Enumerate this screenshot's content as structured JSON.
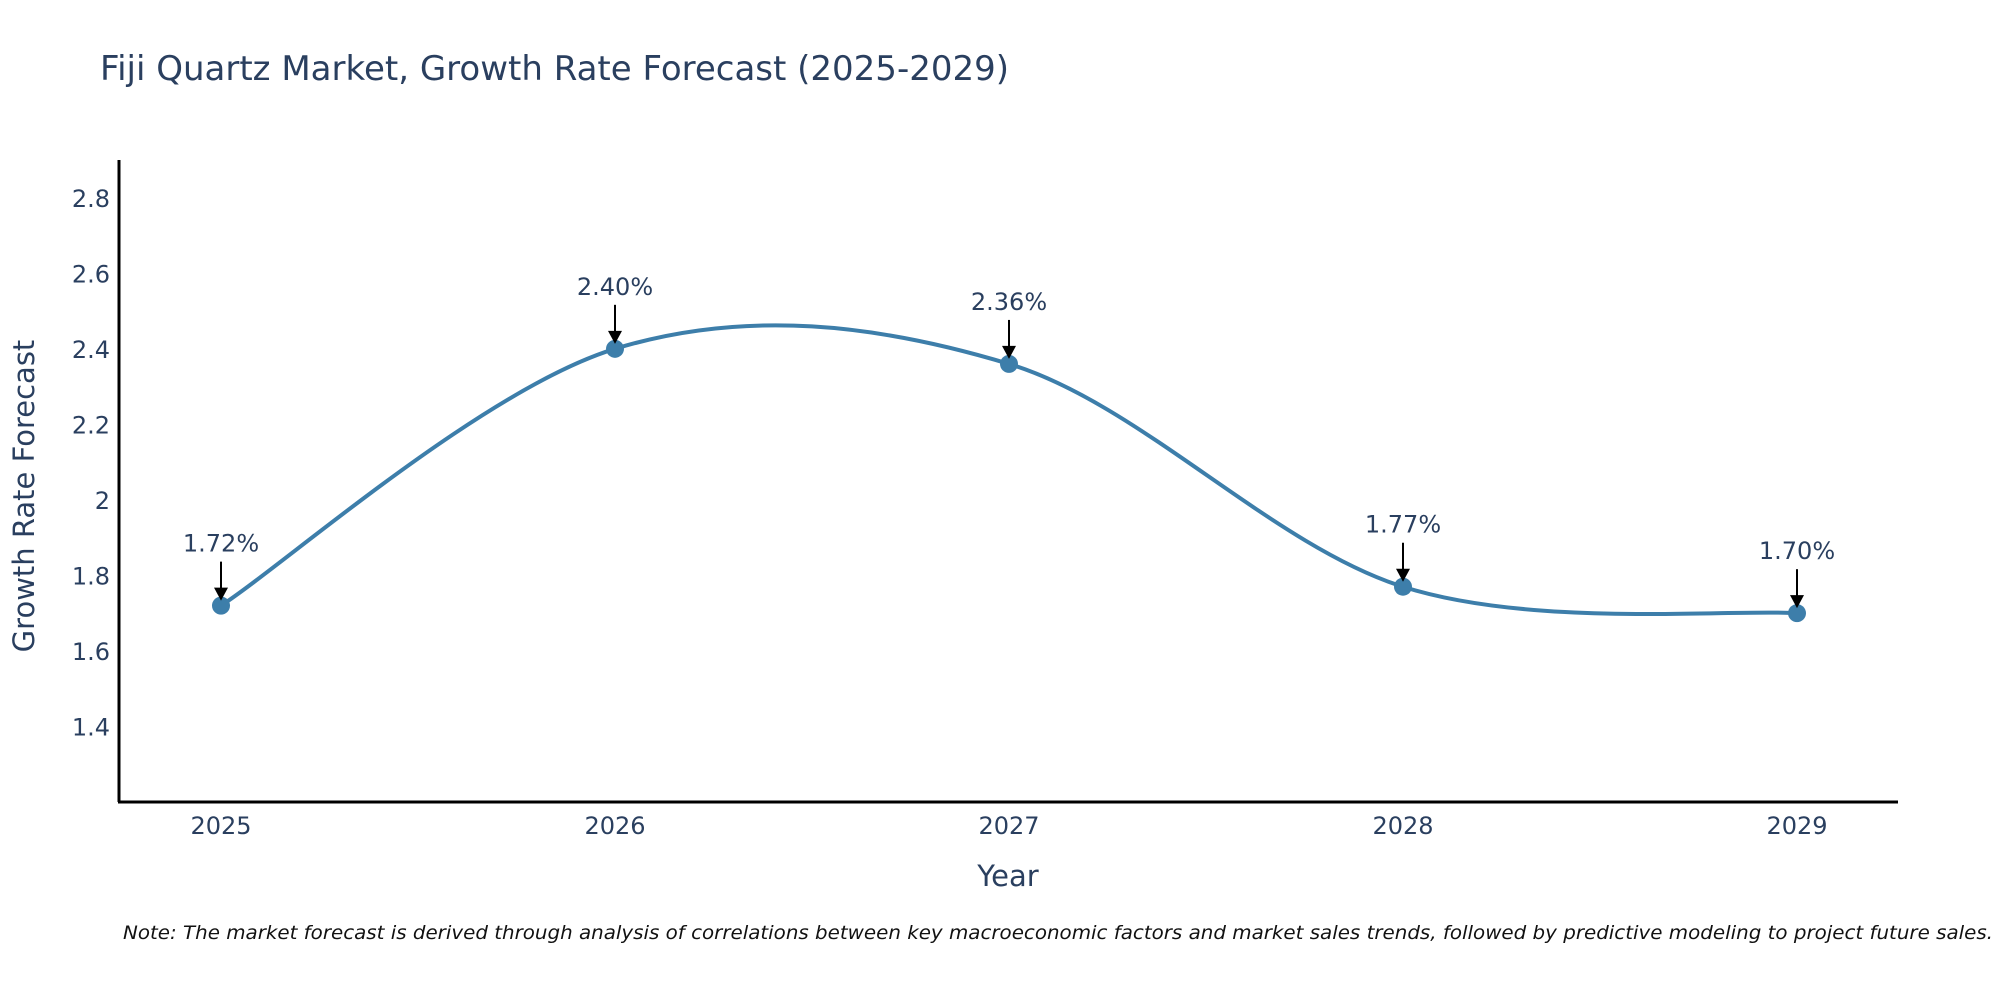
{
  "chart_data": {
    "type": "line",
    "title": "Fiji Quartz Market, Growth Rate Forecast (2025-2029)",
    "xlabel": "Year",
    "ylabel": "Growth Rate Forecast",
    "categories": [
      "2025",
      "2026",
      "2027",
      "2028",
      "2029"
    ],
    "series": [
      {
        "name": "Growth Rate Forecast",
        "values": [
          1.72,
          2.4,
          2.36,
          1.77,
          1.7
        ]
      }
    ],
    "data_labels": [
      "1.72%",
      "2.40%",
      "2.36%",
      "1.77%",
      "1.70%"
    ],
    "ylim": [
      1.2,
      2.9
    ],
    "yticks": [
      1.4,
      1.6,
      1.8,
      2.0,
      2.2,
      2.4,
      2.6,
      2.8
    ],
    "ytick_labels": [
      "1.4",
      "1.6",
      "1.8",
      "2",
      "2.2",
      "2.4",
      "2.6",
      "2.8"
    ],
    "line_shape": "spline",
    "grid": false,
    "legend": "none",
    "line_color": "#3d7eaa",
    "marker_color": "#3d7eaa",
    "annotation_color": "#000000",
    "note": "Note: The market forecast is derived through analysis of correlations between key macroeconomic factors and market sales trends, followed by predictive modeling to project future sales."
  }
}
